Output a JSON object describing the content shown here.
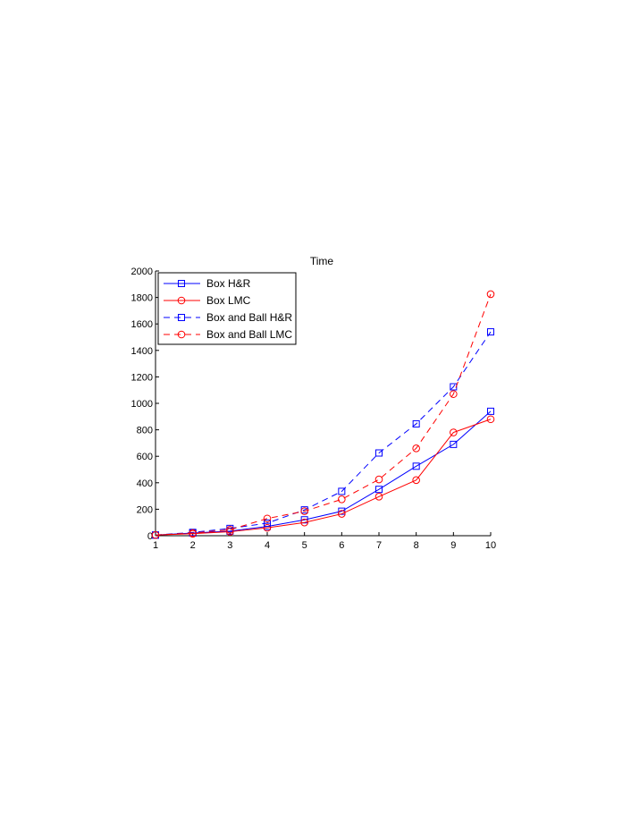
{
  "chart_data": {
    "type": "line",
    "title": "Time",
    "xlabel": "",
    "ylabel": "",
    "xlim": [
      1,
      10
    ],
    "ylim": [
      0,
      2000
    ],
    "xticks": [
      1,
      2,
      3,
      4,
      5,
      6,
      7,
      8,
      9,
      10
    ],
    "yticks": [
      0,
      200,
      400,
      600,
      800,
      1000,
      1200,
      1400,
      1600,
      1800,
      2000
    ],
    "grid": false,
    "legend_position": "top-left",
    "x": [
      1,
      2,
      3,
      4,
      5,
      6,
      7,
      8,
      9,
      10
    ],
    "series": [
      {
        "name": "Box H&R",
        "color": "#0000ff",
        "linestyle": "solid",
        "marker": "square",
        "values": [
          5,
          20,
          35,
          70,
          120,
          185,
          350,
          525,
          690,
          940
        ]
      },
      {
        "name": "Box LMC",
        "color": "#ff0000",
        "linestyle": "solid",
        "marker": "circle",
        "values": [
          5,
          15,
          30,
          60,
          100,
          165,
          295,
          420,
          780,
          880
        ]
      },
      {
        "name": "Box and Ball H&R",
        "color": "#0000ff",
        "linestyle": "dashed",
        "marker": "square",
        "values": [
          5,
          25,
          55,
          95,
          195,
          335,
          625,
          845,
          1125,
          1540
        ]
      },
      {
        "name": "Box and Ball LMC",
        "color": "#ff0000",
        "linestyle": "dashed",
        "marker": "circle",
        "values": [
          5,
          20,
          45,
          130,
          185,
          275,
          425,
          660,
          1070,
          1825
        ]
      }
    ]
  }
}
